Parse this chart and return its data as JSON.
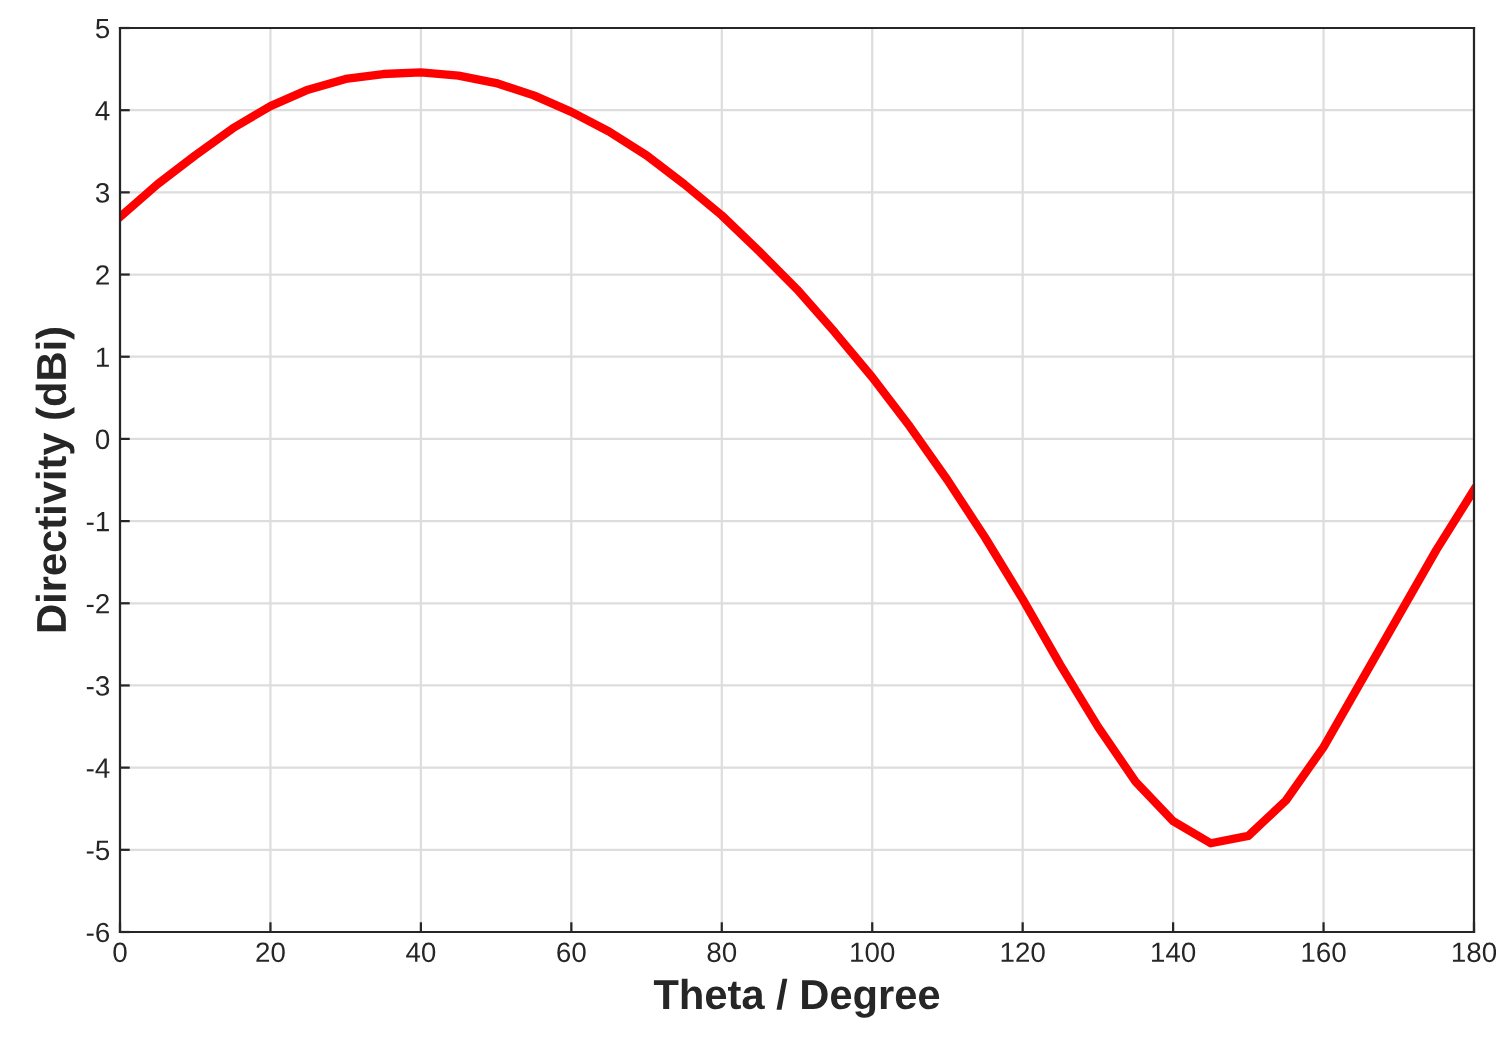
{
  "chart_data": {
    "type": "line",
    "xlabel": "Theta / Degree",
    "ylabel": "Directivity (dBi)",
    "x": [
      0,
      5,
      10,
      15,
      20,
      25,
      30,
      35,
      40,
      45,
      50,
      55,
      60,
      65,
      70,
      75,
      80,
      85,
      90,
      95,
      100,
      105,
      110,
      115,
      120,
      125,
      130,
      135,
      140,
      145,
      150,
      155,
      160,
      165,
      170,
      175,
      180
    ],
    "series": [
      {
        "color": "#ff0000",
        "values": [
          2.7,
          3.1,
          3.45,
          3.78,
          4.05,
          4.25,
          4.38,
          4.44,
          4.46,
          4.42,
          4.33,
          4.18,
          3.98,
          3.74,
          3.45,
          3.1,
          2.72,
          2.28,
          1.82,
          1.3,
          0.75,
          0.15,
          -0.5,
          -1.2,
          -1.95,
          -2.75,
          -3.5,
          -4.17,
          -4.65,
          -4.92,
          -4.83,
          -4.4,
          -3.75,
          -2.95,
          -2.15,
          -1.35,
          -0.62
        ]
      }
    ],
    "xlim": [
      0,
      180
    ],
    "xticks": [
      0,
      20,
      40,
      60,
      80,
      100,
      120,
      140,
      160,
      180
    ],
    "ylim": [
      -6,
      5
    ],
    "yticks": [
      -6,
      -5,
      -4,
      -3,
      -2,
      -1,
      0,
      1,
      2,
      3,
      4,
      5
    ],
    "grid": true,
    "marker": "none",
    "line_style": "solid"
  }
}
